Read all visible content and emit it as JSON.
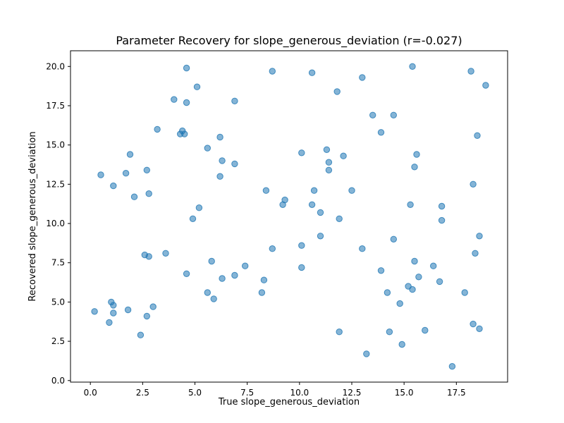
{
  "chart_data": {
    "type": "scatter",
    "title": "Parameter Recovery for slope_generous_deviation (r=-0.027)",
    "xlabel": "True slope_generous_deviation",
    "ylabel": "Recovered slope_generous_deviation",
    "xlim": [
      -0.95,
      19.95
    ],
    "ylim": [
      -0.1,
      21.0
    ],
    "xticks": [
      0.0,
      2.5,
      5.0,
      7.5,
      10.0,
      12.5,
      15.0,
      17.5
    ],
    "xtick_labels": [
      "0.0",
      "2.5",
      "5.0",
      "7.5",
      "10.0",
      "12.5",
      "15.0",
      "17.5"
    ],
    "yticks": [
      0.0,
      2.5,
      5.0,
      7.5,
      10.0,
      12.5,
      15.0,
      17.5,
      20.0
    ],
    "ytick_labels": [
      "0.0",
      "2.5",
      "5.0",
      "7.5",
      "10.0",
      "12.5",
      "15.0",
      "17.5",
      "20.0"
    ],
    "grid": false,
    "color": "#1f77b4",
    "points": [
      [
        0.2,
        4.4
      ],
      [
        0.5,
        13.1
      ],
      [
        0.9,
        3.7
      ],
      [
        1.0,
        5.0
      ],
      [
        1.1,
        12.4
      ],
      [
        1.1,
        4.8
      ],
      [
        1.1,
        4.3
      ],
      [
        1.7,
        13.2
      ],
      [
        1.8,
        4.5
      ],
      [
        1.9,
        14.4
      ],
      [
        2.1,
        11.7
      ],
      [
        2.4,
        2.9
      ],
      [
        2.6,
        8.0
      ],
      [
        2.7,
        13.4
      ],
      [
        2.7,
        4.1
      ],
      [
        2.8,
        7.9
      ],
      [
        2.8,
        11.9
      ],
      [
        3.0,
        4.7
      ],
      [
        3.2,
        16.0
      ],
      [
        3.6,
        8.1
      ],
      [
        4.0,
        17.9
      ],
      [
        4.3,
        15.7
      ],
      [
        4.4,
        15.9
      ],
      [
        4.5,
        15.7
      ],
      [
        4.6,
        17.7
      ],
      [
        4.6,
        19.9
      ],
      [
        4.6,
        6.8
      ],
      [
        4.9,
        10.3
      ],
      [
        5.1,
        18.7
      ],
      [
        5.2,
        11.0
      ],
      [
        5.6,
        14.8
      ],
      [
        5.6,
        5.6
      ],
      [
        5.8,
        7.6
      ],
      [
        5.9,
        5.2
      ],
      [
        6.2,
        15.5
      ],
      [
        6.2,
        13.0
      ],
      [
        6.3,
        14.0
      ],
      [
        6.3,
        6.5
      ],
      [
        6.9,
        17.8
      ],
      [
        6.9,
        13.8
      ],
      [
        6.9,
        6.7
      ],
      [
        7.4,
        7.3
      ],
      [
        8.2,
        5.6
      ],
      [
        8.3,
        6.4
      ],
      [
        8.4,
        12.1
      ],
      [
        8.7,
        19.7
      ],
      [
        8.7,
        8.4
      ],
      [
        9.2,
        11.2
      ],
      [
        9.3,
        11.5
      ],
      [
        10.1,
        14.5
      ],
      [
        10.1,
        8.6
      ],
      [
        10.1,
        7.2
      ],
      [
        10.6,
        19.6
      ],
      [
        10.6,
        11.2
      ],
      [
        10.7,
        12.1
      ],
      [
        11.0,
        10.7
      ],
      [
        11.0,
        9.2
      ],
      [
        11.3,
        14.7
      ],
      [
        11.4,
        13.9
      ],
      [
        11.4,
        13.4
      ],
      [
        11.8,
        18.4
      ],
      [
        11.9,
        10.3
      ],
      [
        11.9,
        3.1
      ],
      [
        12.1,
        14.3
      ],
      [
        12.5,
        12.1
      ],
      [
        13.0,
        19.3
      ],
      [
        13.0,
        8.4
      ],
      [
        13.2,
        1.7
      ],
      [
        13.5,
        16.9
      ],
      [
        13.9,
        15.8
      ],
      [
        13.9,
        7.0
      ],
      [
        14.2,
        5.6
      ],
      [
        14.3,
        3.1
      ],
      [
        14.5,
        16.9
      ],
      [
        14.5,
        9.0
      ],
      [
        14.8,
        4.9
      ],
      [
        14.9,
        2.3
      ],
      [
        15.2,
        6.0
      ],
      [
        15.3,
        11.2
      ],
      [
        15.4,
        20.0
      ],
      [
        15.4,
        5.8
      ],
      [
        15.5,
        13.6
      ],
      [
        15.5,
        7.6
      ],
      [
        15.6,
        14.4
      ],
      [
        15.7,
        6.6
      ],
      [
        16.0,
        3.2
      ],
      [
        16.4,
        7.3
      ],
      [
        16.7,
        6.3
      ],
      [
        16.8,
        10.2
      ],
      [
        16.8,
        11.1
      ],
      [
        17.3,
        0.9
      ],
      [
        17.9,
        5.6
      ],
      [
        18.2,
        19.7
      ],
      [
        18.3,
        12.5
      ],
      [
        18.3,
        3.6
      ],
      [
        18.4,
        8.1
      ],
      [
        18.5,
        15.6
      ],
      [
        18.6,
        3.3
      ],
      [
        18.6,
        9.2
      ],
      [
        18.9,
        18.8
      ]
    ]
  }
}
